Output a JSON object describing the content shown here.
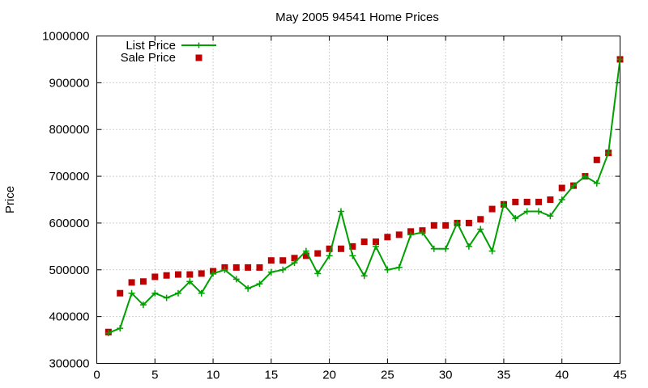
{
  "chart_data": {
    "type": "line",
    "title": "May 2005 94541 Home Prices",
    "xlabel": "",
    "ylabel": "Price",
    "xlim": [
      0,
      45
    ],
    "ylim": [
      300000,
      1000000
    ],
    "xticks": [
      0,
      5,
      10,
      15,
      20,
      25,
      30,
      35,
      40,
      45
    ],
    "yticks": [
      300000,
      400000,
      500000,
      600000,
      700000,
      800000,
      900000,
      1000000
    ],
    "grid": true,
    "legend_position": "top-left",
    "x": [
      1,
      2,
      3,
      4,
      5,
      6,
      7,
      8,
      9,
      10,
      11,
      12,
      13,
      14,
      15,
      16,
      17,
      18,
      19,
      20,
      21,
      22,
      23,
      24,
      25,
      26,
      27,
      28,
      29,
      30,
      31,
      32,
      33,
      34,
      35,
      36,
      37,
      38,
      39,
      40,
      41,
      42,
      43,
      44,
      45
    ],
    "series": [
      {
        "name": "List Price",
        "style": "lines+points",
        "color": "#00a000",
        "values": [
          365000,
          375000,
          450000,
          425000,
          450000,
          440000,
          450000,
          475000,
          450000,
          492000,
          500000,
          480000,
          460000,
          470000,
          495000,
          500000,
          515000,
          540000,
          492000,
          530000,
          625000,
          530000,
          487000,
          550000,
          500000,
          505000,
          575000,
          580000,
          545000,
          545000,
          600000,
          550000,
          587000,
          540000,
          640000,
          610000,
          625000,
          625000,
          615000,
          650000,
          680000,
          700000,
          685000,
          750000,
          950000
        ]
      },
      {
        "name": "Sale Price",
        "style": "points",
        "color": "#c00000",
        "values": [
          367000,
          450000,
          473000,
          475000,
          485000,
          488000,
          490000,
          490000,
          492000,
          497000,
          505000,
          505000,
          505000,
          505000,
          520000,
          520000,
          525000,
          530000,
          535000,
          545000,
          545000,
          550000,
          560000,
          560000,
          570000,
          575000,
          582000,
          584000,
          595000,
          595000,
          600000,
          600000,
          608000,
          630000,
          640000,
          645000,
          645000,
          645000,
          650000,
          675000,
          680000,
          700000,
          735000,
          750000,
          950000
        ]
      }
    ]
  }
}
